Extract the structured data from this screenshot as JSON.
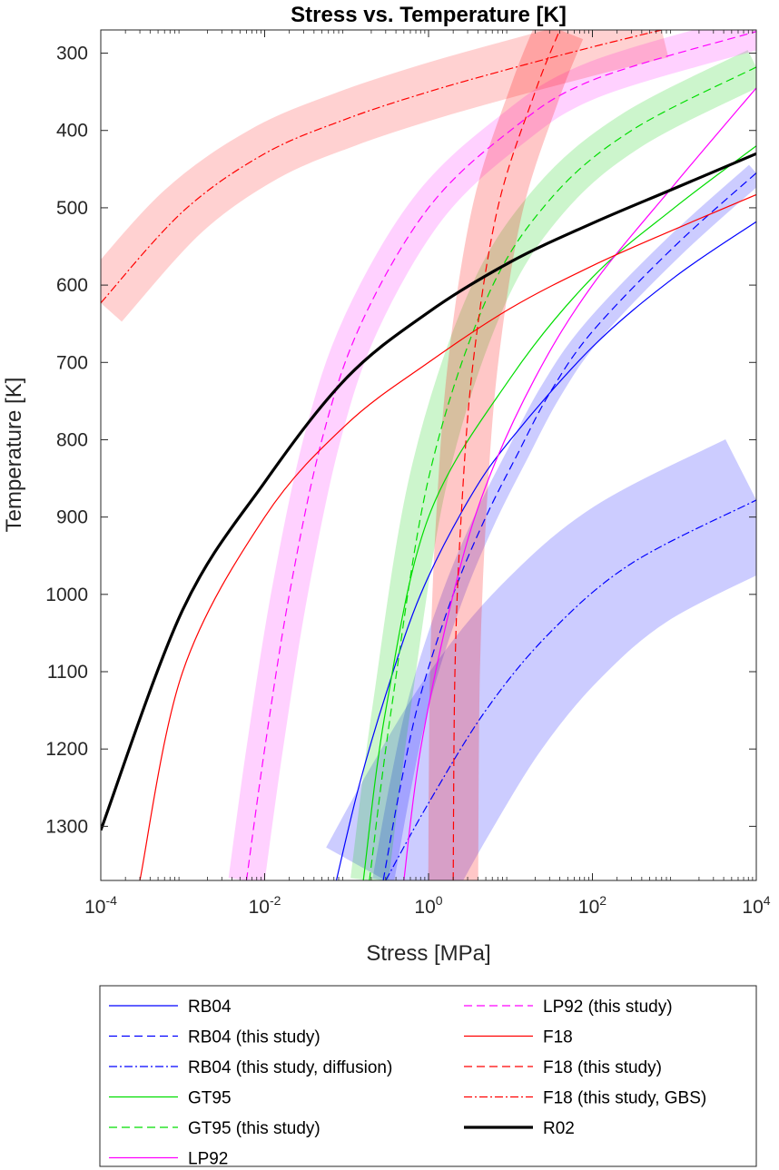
{
  "chart_data": {
    "type": "line",
    "title": "Stress vs. Temperature [K]",
    "xlabel": "Stress [MPa]",
    "ylabel": "Temperature [K]",
    "xscale": "log",
    "xlim": [
      0.0001,
      10000
    ],
    "ylim": [
      1370,
      270
    ],
    "y_reversed": true,
    "x_ticks": [
      {
        "base": "10",
        "exp": "-4",
        "value": 0.0001
      },
      {
        "base": "10",
        "exp": "-2",
        "value": 0.01
      },
      {
        "base": "10",
        "exp": "0",
        "value": 1
      },
      {
        "base": "10",
        "exp": "2",
        "value": 100
      },
      {
        "base": "10",
        "exp": "4",
        "value": 10000
      }
    ],
    "y_ticks": [
      "300",
      "400",
      "500",
      "600",
      "700",
      "800",
      "900",
      "1000",
      "1100",
      "1200",
      "1300"
    ],
    "legend_position": "below plot, two columns",
    "series": [
      {
        "id": "rb04",
        "name": "RB04",
        "color": "#0000ff",
        "style": "solid",
        "width": 1.2,
        "points": [
          [
            0.075,
            1370
          ],
          [
            0.14,
            1250
          ],
          [
            0.3,
            1130
          ],
          [
            0.8,
            1000
          ],
          [
            3,
            880
          ],
          [
            10,
            800
          ],
          [
            100,
            680
          ],
          [
            1000,
            590
          ],
          [
            10000,
            518
          ]
        ]
      },
      {
        "id": "rb04_this",
        "name": "RB04 (this study)",
        "color": "#0000ff",
        "style": "dashed",
        "width": 1.2,
        "band": {
          "color": "#0000ff",
          "opacity": 0.2,
          "width": 24
        },
        "points": [
          [
            0.28,
            1370
          ],
          [
            0.45,
            1250
          ],
          [
            0.8,
            1130
          ],
          [
            2,
            1000
          ],
          [
            5,
            900
          ],
          [
            12,
            820
          ],
          [
            30,
            740
          ],
          [
            100,
            660
          ],
          [
            1000,
            550
          ],
          [
            10000,
            455
          ]
        ]
      },
      {
        "id": "rb04_diff",
        "name": "RB04 (this study, diffusion)",
        "color": "#0000ff",
        "style": "dashdot",
        "width": 1.2,
        "band": {
          "color": "#0000ff",
          "opacity": 0.2,
          "width": 150
        },
        "points": [
          [
            0.3,
            1370
          ],
          [
            1,
            1270
          ],
          [
            5,
            1150
          ],
          [
            30,
            1050
          ],
          [
            300,
            960
          ],
          [
            10000,
            878
          ]
        ]
      },
      {
        "id": "gt95",
        "name": "GT95",
        "color": "#00dd00",
        "style": "solid",
        "width": 1.2,
        "points": [
          [
            0.16,
            1370
          ],
          [
            0.3,
            1150
          ],
          [
            1,
            900
          ],
          [
            10,
            720
          ],
          [
            100,
            590
          ],
          [
            1000,
            500
          ],
          [
            10000,
            420
          ]
        ]
      },
      {
        "id": "gt95_this",
        "name": "GT95 (this study)",
        "color": "#00dd00",
        "style": "dashed",
        "width": 1.2,
        "band": {
          "color": "#00cc00",
          "opacity": 0.2,
          "width": 42
        },
        "points": [
          [
            0.19,
            1370
          ],
          [
            0.35,
            1150
          ],
          [
            1,
            850
          ],
          [
            5,
            620
          ],
          [
            30,
            490
          ],
          [
            300,
            400
          ],
          [
            10000,
            318
          ]
        ]
      },
      {
        "id": "lp92",
        "name": "LP92",
        "color": "#ff00ff",
        "style": "solid",
        "width": 1.2,
        "points": [
          [
            0.5,
            1370
          ],
          [
            0.8,
            1200
          ],
          [
            2,
            1000
          ],
          [
            5,
            860
          ],
          [
            20,
            720
          ],
          [
            100,
            600
          ],
          [
            1000,
            470
          ],
          [
            10000,
            345
          ]
        ]
      },
      {
        "id": "lp92_this",
        "name": "LP92 (this study)",
        "color": "#ff00ff",
        "style": "dashed",
        "width": 1.2,
        "band": {
          "color": "#ff00ff",
          "opacity": 0.18,
          "width": 40
        },
        "points": [
          [
            0.006,
            1370
          ],
          [
            0.01,
            1200
          ],
          [
            0.02,
            1000
          ],
          [
            0.05,
            800
          ],
          [
            0.15,
            650
          ],
          [
            1,
            500
          ],
          [
            10,
            400
          ],
          [
            100,
            335
          ],
          [
            10000,
            272
          ]
        ]
      },
      {
        "id": "f18",
        "name": "F18",
        "color": "#ff0000",
        "style": "solid",
        "width": 1.2,
        "points": [
          [
            0.0003,
            1370
          ],
          [
            0.001,
            1100
          ],
          [
            0.01,
            900
          ],
          [
            0.1,
            780
          ],
          [
            1,
            700
          ],
          [
            10,
            630
          ],
          [
            100,
            575
          ],
          [
            1000,
            528
          ],
          [
            10000,
            483
          ]
        ]
      },
      {
        "id": "f18_this",
        "name": "F18 (this study)",
        "color": "#ff0000",
        "style": "dashed",
        "width": 1.2,
        "band": {
          "color": "#ff0000",
          "opacity": 0.22,
          "width": 55
        },
        "points": [
          [
            2,
            1370
          ],
          [
            2.1,
            1100
          ],
          [
            2.5,
            900
          ],
          [
            3.5,
            700
          ],
          [
            7,
            500
          ],
          [
            20,
            350
          ],
          [
            40,
            270
          ]
        ]
      },
      {
        "id": "f18_gbs",
        "name": "F18 (this study, GBS)",
        "color": "#ff0000",
        "style": "dashdot",
        "width": 1.2,
        "band": {
          "color": "#ff0000",
          "opacity": 0.18,
          "width": 62
        },
        "points": [
          [
            0.0001,
            623
          ],
          [
            0.001,
            505
          ],
          [
            0.01,
            430
          ],
          [
            0.1,
            385
          ],
          [
            1,
            350
          ],
          [
            10,
            320
          ],
          [
            100,
            292
          ],
          [
            700,
            270
          ]
        ]
      },
      {
        "id": "r02",
        "name": "R02",
        "color": "#000000",
        "style": "solid",
        "width": 3.2,
        "points": [
          [
            0.0001,
            1305
          ],
          [
            0.001,
            1020
          ],
          [
            0.01,
            855
          ],
          [
            0.1,
            720
          ],
          [
            1,
            635
          ],
          [
            10,
            570
          ],
          [
            100,
            520
          ],
          [
            1000,
            475
          ],
          [
            10000,
            430
          ]
        ]
      }
    ],
    "legend_columns": [
      [
        "rb04",
        "rb04_this",
        "rb04_diff",
        "gt95",
        "gt95_this",
        "lp92"
      ],
      [
        "lp92_this",
        "f18",
        "f18_this",
        "f18_gbs",
        "r02"
      ]
    ]
  }
}
